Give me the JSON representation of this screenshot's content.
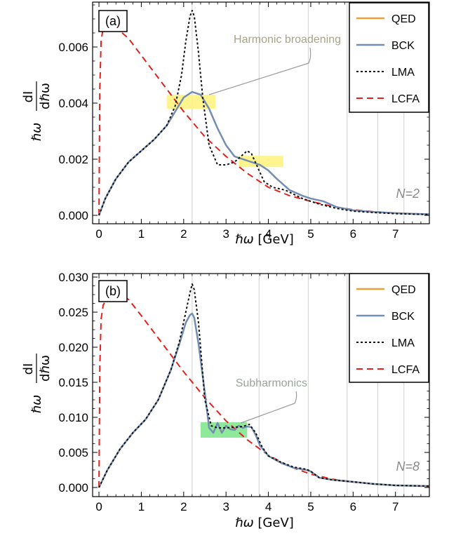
{
  "colors": {
    "QED": "#e8a13a",
    "BCK": "#6f8fba",
    "LMA": "#111111",
    "LCFA": "#e3211c",
    "highlight_a": "#fff27a",
    "highlight_b": "#7be58a",
    "annotation": "#9a9a9a",
    "harmonic_lines": "#cfcfcf"
  },
  "harmonic_lines_x": [
    2.2,
    3.78,
    4.94,
    5.86,
    6.58,
    7.2
  ],
  "chart_data": [
    {
      "type": "line",
      "panel_label": "(a)",
      "xlabel": "ℏω [GeV]",
      "ylabel_num": "dI",
      "ylabel_den": "dℏω",
      "ylabel_prefix": "ℏω",
      "xlim": [
        -0.15,
        7.8
      ],
      "ylim": [
        -0.0003,
        0.0076
      ],
      "xticks": [
        0,
        1,
        2,
        3,
        4,
        5,
        6,
        7
      ],
      "yticks": [
        0.0,
        0.002,
        0.004,
        0.006
      ],
      "ytick_labels": [
        "0.000",
        "0.002",
        "0.004",
        "0.006"
      ],
      "legend": [
        "QED",
        "BCK",
        "LMA",
        "LCFA"
      ],
      "legend_position": "top-right",
      "annotation": "Harmonic broadening",
      "corner_label": "N=2",
      "highlights": [
        {
          "x0": 1.6,
          "x1": 2.75,
          "y0": 0.0038,
          "y1": 0.0043
        },
        {
          "x0": 3.3,
          "x1": 4.35,
          "y0": 0.00172,
          "y1": 0.00212
        }
      ],
      "series": [
        {
          "name": "QED",
          "x": [
            0,
            0.15,
            0.4,
            0.7,
            1.0,
            1.3,
            1.6,
            1.8,
            2.0,
            2.2,
            2.4,
            2.6,
            2.8,
            3.0,
            3.2,
            3.4,
            3.6,
            3.8,
            4.0,
            4.2,
            4.5,
            4.8,
            5.0,
            5.3,
            5.6,
            6.0,
            6.5,
            7.0,
            7.5,
            7.8
          ],
          "y": [
            0.0,
            0.0006,
            0.0013,
            0.0019,
            0.0023,
            0.0027,
            0.0032,
            0.0037,
            0.0042,
            0.0044,
            0.0043,
            0.0038,
            0.0031,
            0.0025,
            0.0021,
            0.002,
            0.0019,
            0.0018,
            0.0016,
            0.0013,
            0.0009,
            0.0007,
            0.0006,
            0.0005,
            0.0003,
            0.00018,
            0.00012,
            8e-05,
            5e-05,
            4e-05
          ]
        },
        {
          "name": "BCK",
          "x": [
            0,
            0.15,
            0.4,
            0.7,
            1.0,
            1.3,
            1.6,
            1.8,
            2.0,
            2.2,
            2.4,
            2.6,
            2.8,
            3.0,
            3.2,
            3.4,
            3.6,
            3.8,
            4.0,
            4.2,
            4.5,
            4.8,
            5.0,
            5.3,
            5.6,
            6.0,
            6.5,
            7.0,
            7.5,
            7.8
          ],
          "y": [
            0.0,
            0.0006,
            0.0013,
            0.0019,
            0.0023,
            0.0027,
            0.0032,
            0.0037,
            0.0042,
            0.0044,
            0.0043,
            0.0038,
            0.0031,
            0.0025,
            0.0021,
            0.002,
            0.0019,
            0.0018,
            0.0016,
            0.0013,
            0.0009,
            0.0007,
            0.0006,
            0.0005,
            0.0003,
            0.00018,
            0.00012,
            8e-05,
            5e-05,
            4e-05
          ]
        },
        {
          "name": "LMA",
          "x": [
            0,
            0.15,
            0.4,
            0.7,
            1.0,
            1.3,
            1.6,
            1.8,
            1.95,
            2.05,
            2.15,
            2.2,
            2.25,
            2.35,
            2.45,
            2.6,
            2.8,
            3.0,
            3.2,
            3.35,
            3.5,
            3.6,
            3.75,
            3.9,
            4.1,
            4.4,
            4.8,
            5.2,
            5.6,
            6.0,
            6.5,
            7.0,
            7.5,
            7.8
          ],
          "y": [
            0.0,
            0.0006,
            0.0013,
            0.0019,
            0.0023,
            0.0027,
            0.0032,
            0.0039,
            0.005,
            0.0062,
            0.0071,
            0.0073,
            0.0071,
            0.0058,
            0.0042,
            0.0025,
            0.0018,
            0.0018,
            0.0019,
            0.0021,
            0.0023,
            0.0022,
            0.0017,
            0.0012,
            0.001,
            0.0009,
            0.0006,
            0.0004,
            0.00025,
            0.00015,
            0.0001,
            6e-05,
            4e-05,
            3e-05
          ]
        },
        {
          "name": "LCFA",
          "x": [
            0,
            0.02,
            0.05,
            0.1,
            0.2,
            0.4,
            0.7,
            1.0,
            1.5,
            2.0,
            2.5,
            3.0,
            3.5,
            4.0,
            4.5,
            5.0,
            5.5,
            6.0,
            6.5,
            7.0,
            7.5,
            7.8
          ],
          "y": [
            0.0,
            0.0045,
            0.0062,
            0.0067,
            0.0068,
            0.0067,
            0.0063,
            0.0057,
            0.0047,
            0.0037,
            0.0028,
            0.0021,
            0.0015,
            0.001,
            0.0007,
            0.0005,
            0.00032,
            0.0002,
            0.00013,
            8e-05,
            5e-05,
            4e-05
          ]
        }
      ]
    },
    {
      "type": "line",
      "panel_label": "(b)",
      "xlabel": "ℏω [GeV]",
      "ylabel_num": "dI",
      "ylabel_den": "dℏω",
      "ylabel_prefix": "ℏω",
      "xlim": [
        -0.15,
        7.8
      ],
      "ylim": [
        -0.0013,
        0.0305
      ],
      "xticks": [
        0,
        1,
        2,
        3,
        4,
        5,
        6,
        7
      ],
      "yticks": [
        0.0,
        0.005,
        0.01,
        0.015,
        0.02,
        0.025,
        0.03
      ],
      "ytick_labels": [
        "0.000",
        "0.005",
        "0.010",
        "0.015",
        "0.020",
        "0.025",
        "0.030"
      ],
      "legend": [
        "QED",
        "BCK",
        "LMA",
        "LCFA"
      ],
      "legend_position": "top-right",
      "annotation": "Subharmonics",
      "corner_label": "N=8",
      "highlights": [
        {
          "x0": 2.4,
          "x1": 3.5,
          "y0": 0.0071,
          "y1": 0.0093
        }
      ],
      "series": [
        {
          "name": "QED",
          "x": [
            0,
            0.2,
            0.5,
            0.8,
            1.1,
            1.4,
            1.7,
            1.9,
            2.05,
            2.15,
            2.2,
            2.25,
            2.35,
            2.5,
            2.6,
            2.7,
            2.8,
            2.9,
            3.0,
            3.1,
            3.2,
            3.3,
            3.4,
            3.5,
            3.6,
            3.7,
            3.8,
            4.0,
            4.3,
            4.6,
            4.9,
            5.0,
            5.2,
            5.5,
            6.0,
            6.5,
            7.0,
            7.8
          ],
          "y": [
            0.0,
            0.0025,
            0.0055,
            0.0078,
            0.0097,
            0.0125,
            0.0168,
            0.0205,
            0.0235,
            0.0246,
            0.0248,
            0.0242,
            0.0205,
            0.0135,
            0.0085,
            0.0078,
            0.0092,
            0.0078,
            0.0088,
            0.0083,
            0.0082,
            0.0088,
            0.0085,
            0.0087,
            0.0086,
            0.0075,
            0.006,
            0.0045,
            0.0035,
            0.0028,
            0.0025,
            0.0023,
            0.0014,
            0.0011,
            0.0008,
            0.0005,
            0.0003,
            0.0002
          ]
        },
        {
          "name": "BCK",
          "x": [
            0,
            0.2,
            0.5,
            0.8,
            1.1,
            1.4,
            1.7,
            1.9,
            2.05,
            2.15,
            2.2,
            2.25,
            2.35,
            2.5,
            2.6,
            2.7,
            2.8,
            2.9,
            3.0,
            3.1,
            3.2,
            3.3,
            3.4,
            3.5,
            3.6,
            3.7,
            3.8,
            4.0,
            4.3,
            4.6,
            4.9,
            5.0,
            5.2,
            5.5,
            6.0,
            6.5,
            7.0,
            7.8
          ],
          "y": [
            0.0,
            0.0025,
            0.0055,
            0.0078,
            0.0097,
            0.0125,
            0.0168,
            0.0205,
            0.0235,
            0.0246,
            0.0248,
            0.0242,
            0.0205,
            0.0135,
            0.0085,
            0.0078,
            0.0092,
            0.0078,
            0.0088,
            0.0083,
            0.0082,
            0.0088,
            0.0085,
            0.0087,
            0.0086,
            0.0075,
            0.006,
            0.0045,
            0.0035,
            0.0028,
            0.0025,
            0.0023,
            0.0014,
            0.0011,
            0.0008,
            0.0005,
            0.0003,
            0.0002
          ]
        },
        {
          "name": "LMA",
          "x": [
            0,
            0.2,
            0.5,
            0.8,
            1.1,
            1.4,
            1.7,
            1.9,
            2.05,
            2.15,
            2.2,
            2.25,
            2.35,
            2.5,
            2.65,
            2.8,
            3.0,
            3.2,
            3.4,
            3.55,
            3.7,
            3.85,
            4.0,
            4.3,
            4.6,
            4.9,
            5.0,
            5.2,
            5.5,
            6.0,
            6.5,
            7.0,
            7.8
          ],
          "y": [
            0.0,
            0.0025,
            0.0055,
            0.0078,
            0.0097,
            0.0125,
            0.0168,
            0.0208,
            0.025,
            0.0278,
            0.029,
            0.0282,
            0.0235,
            0.0125,
            0.0088,
            0.0085,
            0.0085,
            0.0086,
            0.0087,
            0.009,
            0.0078,
            0.0058,
            0.0045,
            0.0036,
            0.0029,
            0.0026,
            0.0023,
            0.0014,
            0.0011,
            0.0008,
            0.0005,
            0.0003,
            0.0002
          ]
        },
        {
          "name": "LCFA",
          "x": [
            0,
            0.02,
            0.05,
            0.1,
            0.2,
            0.4,
            0.7,
            1.0,
            1.5,
            2.0,
            2.5,
            3.0,
            3.5,
            4.0,
            4.5,
            5.0,
            5.5,
            6.0,
            6.5,
            7.0,
            7.5,
            7.8
          ],
          "y": [
            0.0,
            0.017,
            0.024,
            0.026,
            0.0272,
            0.0278,
            0.0268,
            0.0245,
            0.0205,
            0.0165,
            0.0128,
            0.0095,
            0.0068,
            0.0046,
            0.003,
            0.0019,
            0.0012,
            0.0008,
            0.0005,
            0.0003,
            0.0002,
            0.00015
          ]
        }
      ]
    }
  ]
}
